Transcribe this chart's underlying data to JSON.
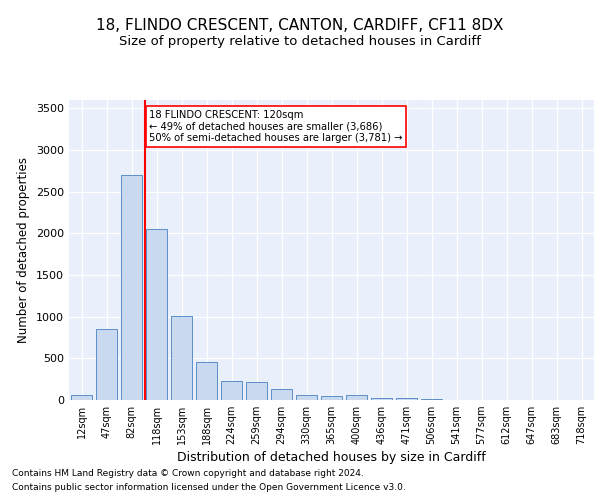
{
  "title_line1": "18, FLINDO CRESCENT, CANTON, CARDIFF, CF11 8DX",
  "title_line2": "Size of property relative to detached houses in Cardiff",
  "xlabel": "Distribution of detached houses by size in Cardiff",
  "ylabel": "Number of detached properties",
  "bar_labels": [
    "12sqm",
    "47sqm",
    "82sqm",
    "118sqm",
    "153sqm",
    "188sqm",
    "224sqm",
    "259sqm",
    "294sqm",
    "330sqm",
    "365sqm",
    "400sqm",
    "436sqm",
    "471sqm",
    "506sqm",
    "541sqm",
    "577sqm",
    "612sqm",
    "647sqm",
    "683sqm",
    "718sqm"
  ],
  "bar_values": [
    60,
    850,
    2700,
    2050,
    1010,
    455,
    225,
    220,
    135,
    60,
    50,
    55,
    30,
    20,
    15,
    5,
    5,
    5,
    5,
    2,
    2
  ],
  "bar_color": "#c9d9f0",
  "bar_edge_color": "#5b8fc9",
  "annotation_line1": "18 FLINDO CRESCENT: 120sqm",
  "annotation_line2": "← 49% of detached houses are smaller (3,686)",
  "annotation_line3": "50% of semi-detached houses are larger (3,781) →",
  "ylim": [
    0,
    3600
  ],
  "yticks": [
    0,
    500,
    1000,
    1500,
    2000,
    2500,
    3000,
    3500
  ],
  "footnote1": "Contains HM Land Registry data © Crown copyright and database right 2024.",
  "footnote2": "Contains public sector information licensed under the Open Government Licence v3.0.",
  "bg_color": "#eaf0fb",
  "grid_color": "#ffffff",
  "title1_fontsize": 11,
  "title2_fontsize": 9.5
}
